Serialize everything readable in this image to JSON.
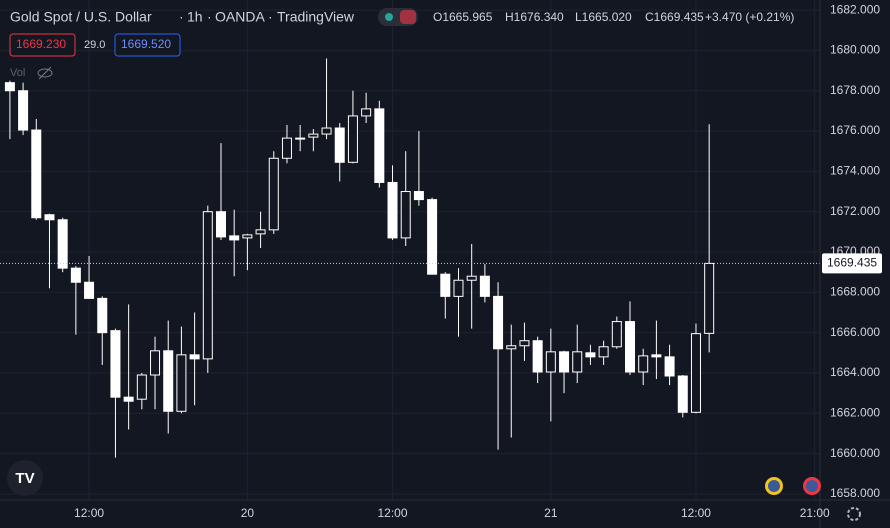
{
  "header": {
    "symbol": "Gold Spot / U.S. Dollar",
    "interval": "1h",
    "exchange": "OANDA",
    "source": "TradingView",
    "ohlc": [
      "O1665.965",
      "H1676.340",
      "L1665.020",
      "C1669.435"
    ],
    "change": "+3.470 (+0.21%)",
    "bid": "1669.230",
    "spread": "29.0",
    "ask": "1669.520",
    "volume_label": "Vol"
  },
  "chart_data": {
    "type": "candlestick",
    "open": [
      1678.4,
      1678.0,
      1676.05,
      1671.85,
      1671.6,
      1669.2,
      1668.5,
      1667.7,
      1666.1,
      1662.8,
      1662.7,
      1663.9,
      1665.1,
      1662.1,
      1664.9,
      1664.7,
      1672.0,
      1670.8,
      1670.7,
      1670.9,
      1671.1,
      1674.65,
      1675.6,
      1675.7,
      1675.85,
      1676.15,
      1674.45,
      1676.75,
      1677.1,
      1673.45,
      1670.7,
      1673.0,
      1672.6,
      1668.9,
      1667.8,
      1668.6,
      1668.8,
      1667.8,
      1665.2,
      1665.35,
      1665.6,
      1664.05,
      1665.05,
      1664.05,
      1665.0,
      1664.8,
      1665.3,
      1666.55,
      1664.05,
      1664.9,
      1664.8,
      1663.85,
      1662.05,
      1665.965
    ],
    "high": [
      1678.5,
      1678.4,
      1676.6,
      1671.9,
      1671.7,
      1669.3,
      1669.8,
      1667.8,
      1666.2,
      1667.4,
      1664.0,
      1665.8,
      1666.6,
      1666.3,
      1667.0,
      1672.3,
      1675.4,
      1672.1,
      1670.9,
      1672.0,
      1675.0,
      1676.3,
      1676.3,
      1676.1,
      1679.6,
      1676.4,
      1678.0,
      1677.9,
      1677.5,
      1674.3,
      1675.0,
      1676.0,
      1672.7,
      1669.0,
      1669.2,
      1670.4,
      1669.4,
      1668.5,
      1666.4,
      1666.5,
      1665.8,
      1666.2,
      1665.1,
      1666.4,
      1665.4,
      1665.6,
      1666.8,
      1667.55,
      1665.2,
      1666.6,
      1665.4,
      1663.9,
      1666.45,
      1676.34
    ],
    "low": [
      1675.6,
      1675.8,
      1671.6,
      1668.2,
      1669.0,
      1665.9,
      1667.7,
      1664.4,
      1659.8,
      1661.2,
      1662.2,
      1662.2,
      1661.0,
      1662.0,
      1662.4,
      1664.0,
      1670.6,
      1668.8,
      1669.1,
      1670.2,
      1670.9,
      1674.4,
      1675.0,
      1675.0,
      1675.6,
      1673.5,
      1674.4,
      1676.4,
      1673.2,
      1670.6,
      1670.3,
      1672.3,
      1668.9,
      1666.7,
      1665.8,
      1666.2,
      1667.5,
      1660.2,
      1660.8,
      1664.6,
      1663.5,
      1661.6,
      1663.0,
      1663.5,
      1664.4,
      1664.4,
      1665.2,
      1663.9,
      1663.4,
      1663.7,
      1663.4,
      1661.8,
      1662.0,
      1665.02
    ],
    "close": [
      1678.0,
      1676.05,
      1671.7,
      1671.6,
      1669.2,
      1668.5,
      1667.7,
      1666.0,
      1662.8,
      1662.6,
      1663.9,
      1665.1,
      1662.1,
      1664.9,
      1664.7,
      1672.0,
      1670.75,
      1670.6,
      1670.85,
      1671.1,
      1674.65,
      1675.65,
      1675.65,
      1675.85,
      1676.15,
      1674.45,
      1676.75,
      1677.1,
      1673.45,
      1670.7,
      1673.0,
      1672.6,
      1668.9,
      1667.8,
      1668.6,
      1668.8,
      1667.8,
      1665.2,
      1665.35,
      1665.6,
      1664.05,
      1665.05,
      1664.05,
      1665.05,
      1664.8,
      1665.3,
      1666.55,
      1664.05,
      1664.85,
      1664.8,
      1663.85,
      1662.05,
      1665.95,
      1669.435
    ],
    "up_color": "#131722",
    "down_color": "#ffffff",
    "border_color": "#ffffff",
    "last_price": 1669.435,
    "xlim": [
      -0.75,
      61.4
    ],
    "xticks": [
      {
        "value": 6,
        "label": "12:00"
      },
      {
        "value": 18,
        "label": "20"
      },
      {
        "value": 29,
        "label": "12:00"
      },
      {
        "value": 41,
        "label": "21"
      },
      {
        "value": 52,
        "label": "12:00"
      },
      {
        "value": 61,
        "label": "21:00"
      }
    ],
    "ylim": [
      1657.7,
      1682.5
    ],
    "yticks": [
      {
        "value": 1658,
        "label": "1658.000"
      },
      {
        "value": 1660,
        "label": "1660.000"
      },
      {
        "value": 1662,
        "label": "1662.000"
      },
      {
        "value": 1664,
        "label": "1664.000"
      },
      {
        "value": 1666,
        "label": "1666.000"
      },
      {
        "value": 1668,
        "label": "1668.000"
      },
      {
        "value": 1670,
        "label": "1670.000"
      },
      {
        "value": 1672,
        "label": "1672.000"
      },
      {
        "value": 1674,
        "label": "1674.000"
      },
      {
        "value": 1676,
        "label": "1676.000"
      },
      {
        "value": 1678,
        "label": "1678.000"
      },
      {
        "value": 1680,
        "label": "1680.000"
      },
      {
        "value": 1682,
        "label": "1682.000"
      }
    ],
    "grid": true
  }
}
